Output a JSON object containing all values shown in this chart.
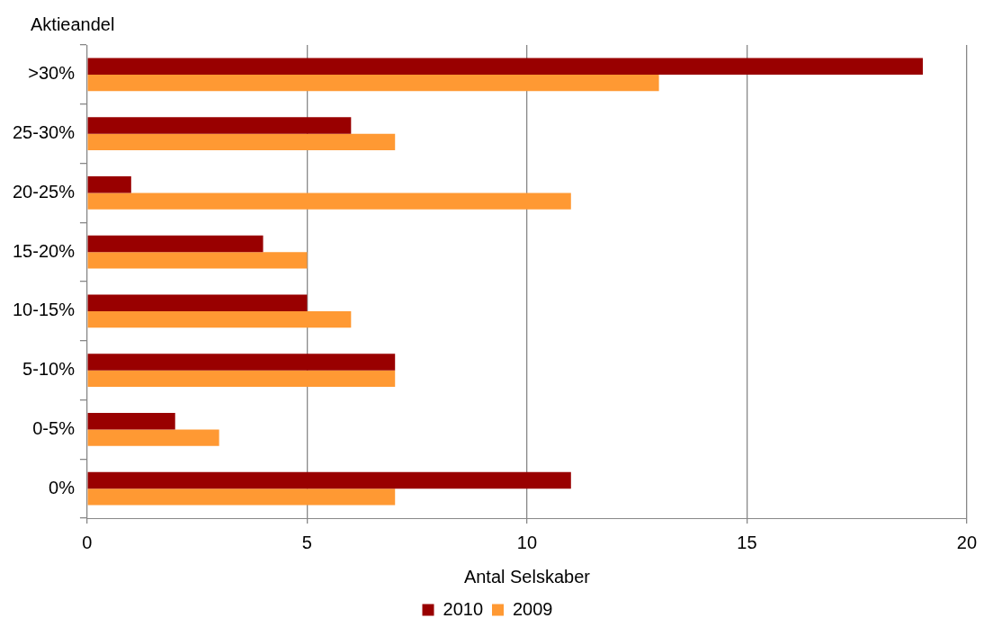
{
  "chart_data": {
    "type": "bar",
    "orientation": "horizontal",
    "xlabel": "Antal Selskaber",
    "ylabel": "Aktieandel",
    "categories": [
      ">30%",
      "25-30%",
      "20-25%",
      "15-20%",
      "10-15%",
      "5-10%",
      "0-5%",
      "0%"
    ],
    "series": [
      {
        "name": "2010",
        "color": "#990000",
        "values": [
          19,
          6,
          1,
          4,
          5,
          7,
          2,
          11
        ]
      },
      {
        "name": "2009",
        "color": "#ff9933",
        "values": [
          13,
          7,
          11,
          5,
          6,
          7,
          3,
          7
        ]
      }
    ],
    "xlim": [
      0,
      20
    ],
    "xticks": [
      0,
      5,
      10,
      15,
      20
    ],
    "grid": "x",
    "legend": "bottom"
  }
}
